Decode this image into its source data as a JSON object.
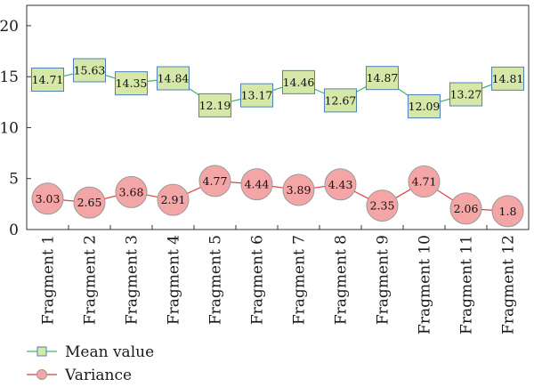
{
  "chart_data": {
    "type": "line",
    "title": "",
    "xlabel": "",
    "ylabel": "",
    "ylim": [
      0,
      22
    ],
    "yticks": [
      0,
      5,
      10,
      15,
      20
    ],
    "grid": false,
    "legend_position": "bottom-left",
    "categories": [
      "Fragment 1",
      "Fragment 2",
      "Fragment 3",
      "Fragment 4",
      "Fragment 5",
      "Fragment 6",
      "Fragment 7",
      "Fragment 8",
      "Fragment 9",
      "Fragment 10",
      "Fragment 11",
      "Fragment 12"
    ],
    "series": [
      {
        "name": "Mean value",
        "marker": "square",
        "line_color": "#3cb371",
        "fill_color": "#d6e8a8",
        "edge_color": "#4f81bd",
        "values": [
          14.71,
          15.63,
          14.35,
          14.84,
          12.19,
          13.17,
          14.46,
          12.67,
          14.87,
          12.09,
          13.27,
          14.81
        ],
        "labels": [
          "14.71",
          "15.63",
          "14.35",
          "14.84",
          "12.19",
          "13.17",
          "14.46",
          "12.67",
          "14.87",
          "12.09",
          "13.27",
          "14.81"
        ]
      },
      {
        "name": "Variance",
        "marker": "circle",
        "line_color": "#e03c3c",
        "fill_color": "#f4a6a6",
        "edge_color": "#999999",
        "values": [
          3.03,
          2.65,
          3.68,
          2.91,
          4.77,
          4.44,
          3.89,
          4.43,
          2.35,
          4.71,
          2.06,
          1.8
        ],
        "labels": [
          "3.03",
          "2.65",
          "3.68",
          "2.91",
          "4.77",
          "4.44",
          "3.89",
          "4.43",
          "2.35",
          "4.71",
          "2.06",
          "1.8"
        ]
      }
    ]
  }
}
